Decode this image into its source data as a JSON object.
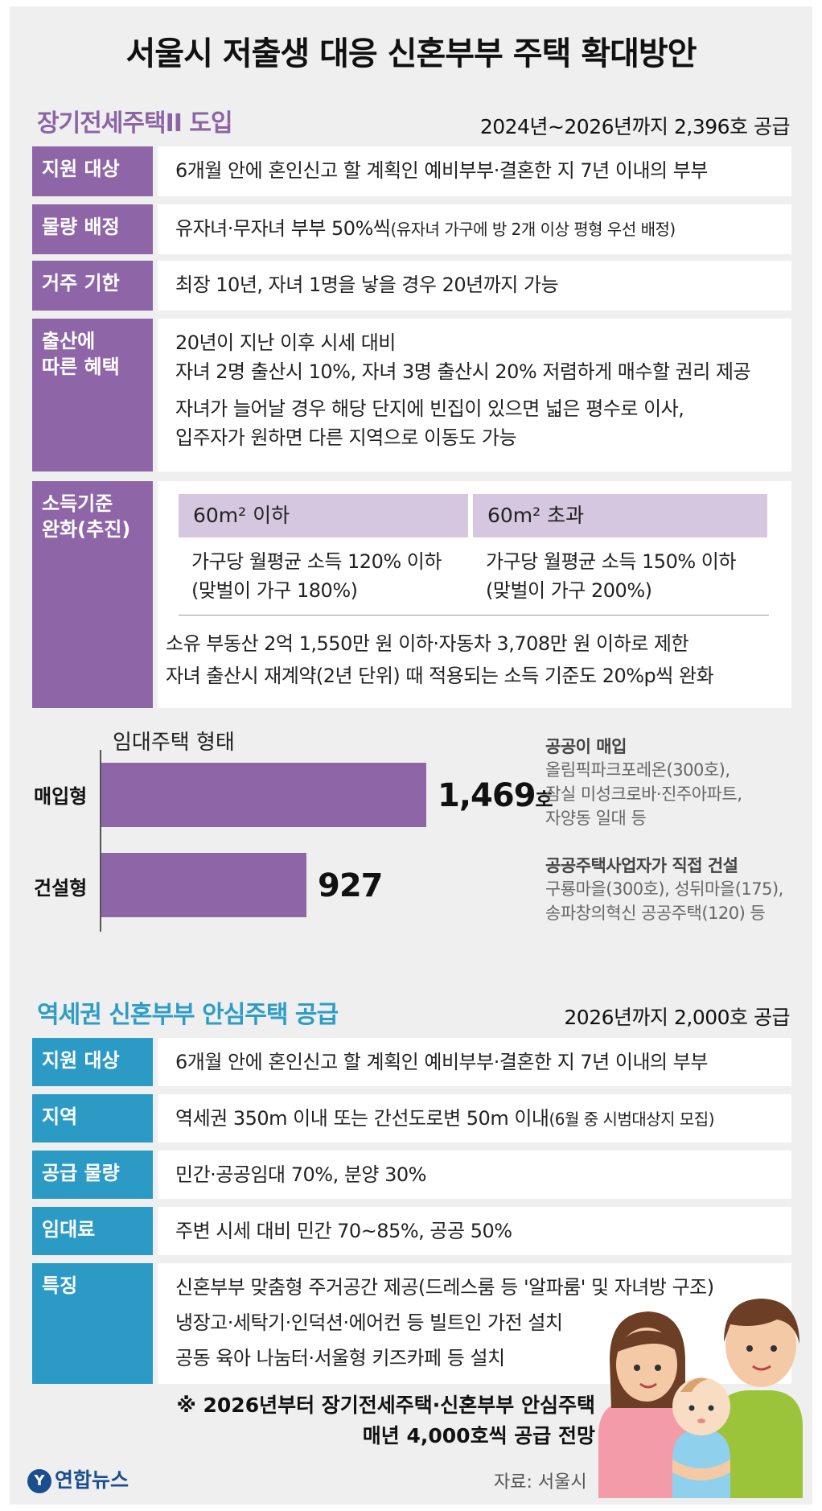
{
  "title": "서울시 저출생 대응 신혼부부 주택 확대방안",
  "section1": {
    "title": "장기전세주택II 도입",
    "note": "2024년~2026년까지 2,396호 공급",
    "rows": [
      {
        "label": "지원 대상",
        "value": "6개월 안에 혼인신고 할 계획인 예비부부·결혼한 지 7년 이내의 부부"
      },
      {
        "label": "물량 배정",
        "value": "유자녀·무자녀 부부 50%씩",
        "value_small": "(유자녀 가구에 방 2개 이상 평형 우선 배정)"
      },
      {
        "label": "거주 기한",
        "value": "최장 10년, 자녀 1명을 낳을 경우 20년까지 가능"
      }
    ],
    "birth": {
      "label1": "출산에",
      "label2": "따른 혜택",
      "lines": [
        "20년이 지난 이후 시세 대비",
        "자녀 2명 출산시 10%, 자녀 3명 출산시 20% 저렴하게 매수할 권리 제공",
        "자녀가 늘어날 경우 해당 단지에 빈집이 있으면 넓은 평수로 이사,",
        "입주자가 원하면 다른 지역으로 이동도 가능"
      ]
    },
    "income": {
      "label1": "소득기준",
      "label2": "완화(추진)",
      "col1_head": "60m² 이하",
      "col1_line1": "가구당 월평균 소득 120% 이하",
      "col1_line2": "(맞벌이 가구 180%)",
      "col2_head": "60m² 초과",
      "col2_line1": "가구당 월평균 소득 150% 이하",
      "col2_line2": "(맞벌이 가구 200%)",
      "line1": "소유 부동산 2억 1,550만 원 이하·자동차 3,708만 원 이하로 제한",
      "line2": "자녀 출산시 재계약(2년 단위) 때 적용되는 소득 기준도 20%p씩 완화"
    }
  },
  "chart_data": {
    "type": "bar",
    "orientation": "horizontal",
    "title": "임대주택 형태",
    "categories": [
      "매입형",
      "건설형"
    ],
    "values": [
      1469,
      927
    ],
    "value_labels": [
      "1,469",
      "927"
    ],
    "unit": "호",
    "bar_color": "#8e66a8",
    "annotations": [
      {
        "heading": "공공이 매입",
        "lines": [
          "올림픽파크포레온(300호),",
          "잠실 미성크로바·진주아파트,",
          "자양동 일대 등"
        ]
      },
      {
        "heading": "공공주택사업자가 직접 건설",
        "lines": [
          "구룡마을(300호), 성뒤마을(175),",
          "송파창의혁신 공공주택(120) 등"
        ]
      }
    ]
  },
  "section2": {
    "title": "역세권 신혼부부 안심주택 공급",
    "note": "2026년까지 2,000호 공급",
    "rows": [
      {
        "label": "지원 대상",
        "value": "6개월 안에 혼인신고 할 계획인 예비부부·결혼한 지 7년 이내의 부부"
      },
      {
        "label": "지역",
        "value": "역세권 350m 이내 또는 간선도로변 50m 이내",
        "value_small": "(6월 중 시범대상지 모집)"
      },
      {
        "label": "공급 물량",
        "value": "민간·공공임대 70%, 분양 30%"
      },
      {
        "label": "임대료",
        "value": "주변 시세 대비 민간 70~85%, 공공 50%"
      }
    ],
    "feature": {
      "label": "특징",
      "lines": [
        "신혼부부 맞춤형 주거공간 제공(드레스룸 등 '알파룸' 및 자녀방 구조)",
        "냉장고·세탁기·인덕션·에어컨 등 빌트인 가전 설치",
        "공동 육아 나눔터·서울형 키즈카페 등 설치"
      ]
    }
  },
  "footnote": {
    "line1": "※ 2026년부터 장기전세주택·신혼부부 안심주택",
    "line2": "매년 4,000호씩 공급 전망"
  },
  "logo": "연합뉴스",
  "source": "자료: 서울시",
  "colors": {
    "purple": "#8e66a8",
    "light_purple": "#d6c7e1",
    "blue": "#2b9ac4",
    "background": "#efefef"
  }
}
